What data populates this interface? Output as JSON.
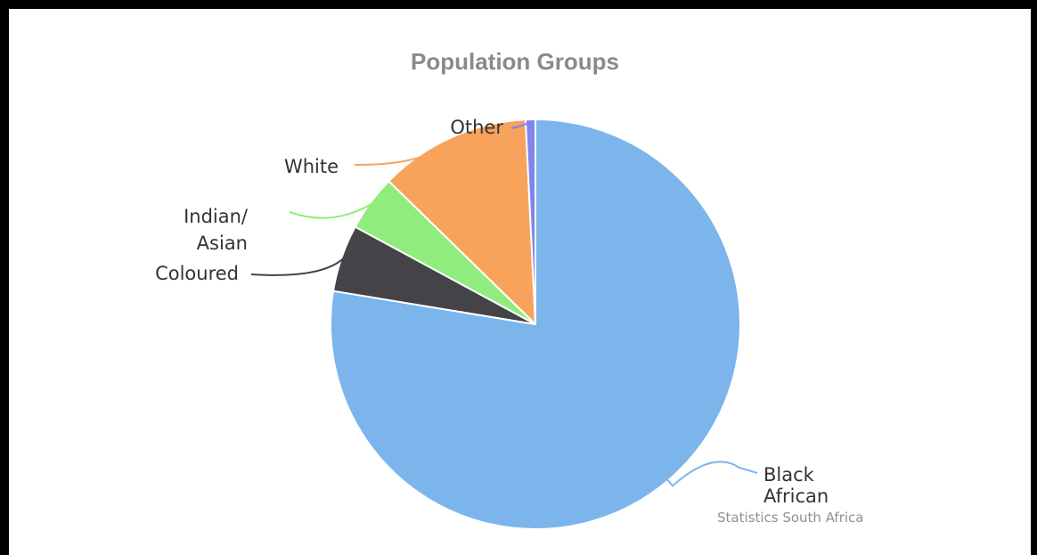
{
  "chart_data": {
    "type": "pie",
    "title": "Population Groups",
    "credit": "Statistics South Africa",
    "slices": [
      {
        "label": [
          "Black",
          "African"
        ],
        "value": 80.7,
        "color": "#7cb5ec"
      },
      {
        "label": [
          "Coloured"
        ],
        "value": 5.5,
        "color": "#434348"
      },
      {
        "label": [
          "Indian/",
          "Asian"
        ],
        "value": 4.6,
        "color": "#90ed7d"
      },
      {
        "label": [
          "White"
        ],
        "value": 12.4,
        "color": "#f7a35c"
      },
      {
        "label": [
          "Other"
        ],
        "value": 0.8,
        "color": "#8085e9"
      }
    ]
  }
}
